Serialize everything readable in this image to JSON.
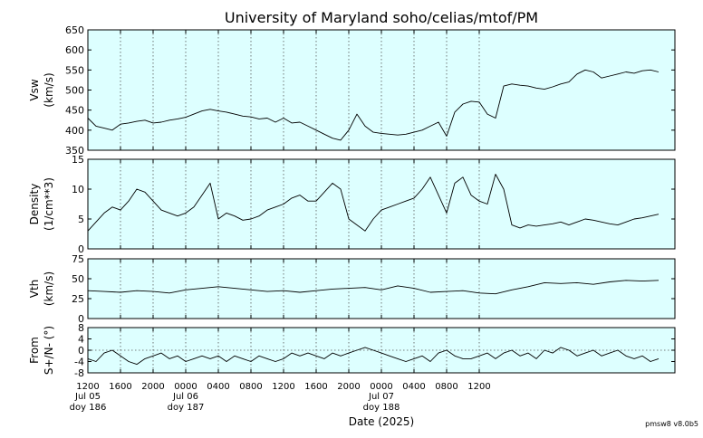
{
  "title": "University of Maryland  soho/celias/mtof/PM",
  "xlabel": "Date (2025)",
  "footer": "pmsw8 v8.0b5",
  "colors": {
    "panel_bg": "#ddffff",
    "line": "#000000",
    "grid": "#555555"
  },
  "chart_data": [
    {
      "type": "line",
      "ylabel_lines": [
        "Vsw",
        "(km/s)"
      ],
      "ylim": [
        350,
        650
      ],
      "yticks": [
        350,
        400,
        450,
        500,
        550,
        600,
        650
      ],
      "zero_line": false,
      "x_hours": [
        0,
        1,
        2,
        3,
        4,
        5,
        6,
        7,
        8,
        9,
        10,
        11,
        12,
        13,
        14,
        15,
        16,
        17,
        18,
        19,
        20,
        21,
        22,
        23,
        24,
        25,
        26,
        27,
        28,
        29,
        30,
        31,
        32,
        33,
        34,
        35,
        36,
        37,
        38,
        39,
        40,
        41,
        42,
        43,
        44,
        45,
        46,
        47,
        48,
        49,
        50,
        51,
        52,
        53,
        54,
        55,
        56,
        57,
        58,
        59,
        60,
        61,
        62,
        63,
        64,
        65,
        66,
        67,
        68,
        69,
        70
      ],
      "values": [
        430,
        410,
        405,
        400,
        415,
        418,
        422,
        425,
        418,
        420,
        425,
        428,
        432,
        440,
        448,
        452,
        448,
        445,
        440,
        435,
        433,
        428,
        430,
        420,
        430,
        418,
        420,
        410,
        400,
        390,
        380,
        375,
        400,
        440,
        410,
        395,
        392,
        390,
        388,
        390,
        395,
        400,
        410,
        420,
        385,
        445,
        465,
        472,
        470,
        440,
        430,
        510,
        515,
        512,
        510,
        505,
        502,
        508,
        515,
        520,
        540,
        550,
        545,
        530,
        535,
        540,
        545,
        542,
        548,
        550,
        545
      ]
    },
    {
      "type": "line",
      "ylabel_lines": [
        "Density",
        "(1/cm**3)"
      ],
      "ylim": [
        0,
        15
      ],
      "yticks": [
        0,
        5,
        10,
        15
      ],
      "zero_line": false,
      "x_hours": [
        0,
        1,
        2,
        3,
        4,
        5,
        6,
        7,
        8,
        9,
        10,
        11,
        12,
        13,
        14,
        15,
        16,
        17,
        18,
        19,
        20,
        21,
        22,
        23,
        24,
        25,
        26,
        27,
        28,
        29,
        30,
        31,
        32,
        33,
        34,
        35,
        36,
        37,
        38,
        39,
        40,
        41,
        42,
        43,
        44,
        45,
        46,
        47,
        48,
        49,
        50,
        51,
        52,
        53,
        54,
        55,
        56,
        57,
        58,
        59,
        60,
        61,
        62,
        63,
        64,
        65,
        66,
        67,
        68,
        69,
        70
      ],
      "values": [
        3,
        4.5,
        6,
        7,
        6.5,
        8,
        10,
        9.5,
        8,
        6.5,
        6,
        5.5,
        6,
        7,
        9,
        11,
        5,
        6,
        5.5,
        4.8,
        5,
        5.5,
        6.5,
        7,
        7.5,
        8.5,
        9,
        8,
        8,
        9.5,
        11,
        10,
        5,
        4,
        3,
        5,
        6.5,
        7,
        7.5,
        8,
        8.5,
        10,
        12,
        9,
        6,
        11,
        12,
        9,
        8,
        7.5,
        12.5,
        10,
        4,
        3.5,
        4,
        3.8,
        4,
        4.2,
        4.5,
        4,
        4.5,
        5,
        4.8,
        4.5,
        4.2,
        4,
        4.5,
        5,
        5.2,
        5.5,
        5.8
      ]
    },
    {
      "type": "line",
      "ylabel_lines": [
        "Vth",
        "(km/s)"
      ],
      "ylim": [
        0,
        75
      ],
      "yticks": [
        0,
        25,
        50,
        75
      ],
      "zero_line": false,
      "x_hours": [
        0,
        2,
        4,
        6,
        8,
        10,
        12,
        14,
        16,
        18,
        20,
        22,
        24,
        26,
        28,
        30,
        32,
        34,
        36,
        38,
        40,
        42,
        44,
        46,
        48,
        50,
        52,
        54,
        56,
        58,
        60,
        62,
        64,
        66,
        68,
        70
      ],
      "values": [
        35,
        34,
        33,
        35,
        34,
        32,
        36,
        38,
        40,
        38,
        36,
        34,
        35,
        33,
        35,
        37,
        38,
        39,
        36,
        41,
        38,
        33,
        34,
        35,
        32,
        31,
        36,
        40,
        45,
        44,
        45,
        43,
        46,
        48,
        47,
        48
      ]
    },
    {
      "type": "line",
      "ylabel_lines": [
        "From",
        "S+/N- (°)"
      ],
      "ylim": [
        -8,
        8
      ],
      "yticks": [
        -8,
        -4,
        0,
        4,
        8
      ],
      "zero_line": true,
      "x_hours": [
        0,
        1,
        2,
        3,
        4,
        5,
        6,
        7,
        8,
        9,
        10,
        11,
        12,
        13,
        14,
        15,
        16,
        17,
        18,
        19,
        20,
        21,
        22,
        23,
        24,
        25,
        26,
        27,
        28,
        29,
        30,
        31,
        32,
        33,
        34,
        35,
        36,
        37,
        38,
        39,
        40,
        41,
        42,
        43,
        44,
        45,
        46,
        47,
        48,
        49,
        50,
        51,
        52,
        53,
        54,
        55,
        56,
        57,
        58,
        59,
        60,
        61,
        62,
        63,
        64,
        65,
        66,
        67,
        68,
        69,
        70
      ],
      "values": [
        -3,
        -4,
        -1,
        0,
        -2,
        -4,
        -5,
        -3,
        -2,
        -1,
        -3,
        -2,
        -4,
        -3,
        -2,
        -3,
        -2,
        -4,
        -2,
        -3,
        -4,
        -2,
        -3,
        -4,
        -3,
        -1,
        -2,
        -1,
        -2,
        -3,
        -1,
        -2,
        -1,
        0,
        1,
        0,
        -1,
        -2,
        -3,
        -4,
        -3,
        -2,
        -4,
        -1,
        0,
        -2,
        -3,
        -3,
        -2,
        -1,
        -3,
        -1,
        0,
        -2,
        -1,
        -3,
        0,
        -1,
        1,
        0,
        -2,
        -1,
        0,
        -2,
        -1,
        0,
        -2,
        -3,
        -2,
        -4,
        -3
      ]
    }
  ],
  "x_axis": {
    "range_hours": [
      0,
      72
    ],
    "ticks": [
      {
        "h": 0,
        "time": "1200",
        "date": "Jul 05",
        "doy": "doy 186"
      },
      {
        "h": 4,
        "time": "1600",
        "date": "",
        "doy": ""
      },
      {
        "h": 8,
        "time": "2000",
        "date": "",
        "doy": ""
      },
      {
        "h": 12,
        "time": "0000",
        "date": "Jul 06",
        "doy": "doy 187"
      },
      {
        "h": 16,
        "time": "0400",
        "date": "",
        "doy": ""
      },
      {
        "h": 20,
        "time": "0800",
        "date": "",
        "doy": ""
      },
      {
        "h": 24,
        "time": "1200",
        "date": "",
        "doy": ""
      },
      {
        "h": 28,
        "time": "1600",
        "date": "",
        "doy": ""
      },
      {
        "h": 32,
        "time": "2000",
        "date": "",
        "doy": ""
      },
      {
        "h": 36,
        "time": "0000",
        "date": "Jul 07",
        "doy": "doy 188"
      },
      {
        "h": 40,
        "time": "0400",
        "date": "",
        "doy": ""
      },
      {
        "h": 44,
        "time": "0800",
        "date": "",
        "doy": ""
      },
      {
        "h": 48,
        "time": "1200",
        "date": "",
        "doy": ""
      }
    ]
  }
}
